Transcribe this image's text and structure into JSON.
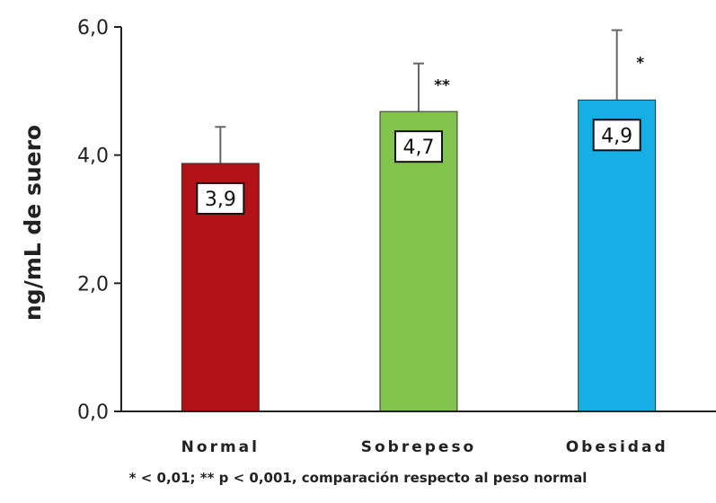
{
  "chart_data": {
    "type": "bar",
    "ylabel": "ng/mL de suero",
    "xlabel": "",
    "ylim": [
      0,
      6
    ],
    "yticks": [
      "0,0",
      "2,0",
      "4,0",
      "6,0"
    ],
    "ytick_values": [
      0,
      2,
      4,
      6
    ],
    "grid": false,
    "categories": [
      "Normal",
      "Sobrepeso",
      "Obesidad"
    ],
    "values": [
      3.87,
      4.68,
      4.86
    ],
    "value_labels": [
      "3,9",
      "4,7",
      "4,9"
    ],
    "error_upper": [
      4.44,
      5.43,
      5.95
    ],
    "significance": [
      "",
      "**",
      "*"
    ],
    "colors": [
      "#b01218",
      "#82c34d",
      "#17aee6"
    ],
    "footnote": "* < 0,01; ** p < 0,001, comparación respecto al peso normal"
  }
}
